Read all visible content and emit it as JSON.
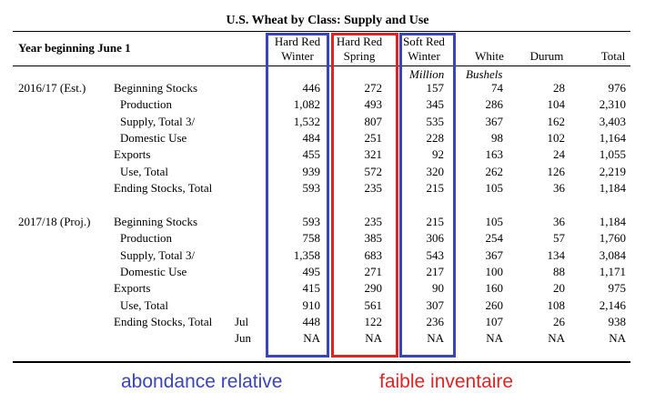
{
  "title": "U.S. Wheat by Class: Supply and Use",
  "year_header": "Year beginning June 1",
  "columns": [
    {
      "line1": "Hard Red",
      "line2": "Winter"
    },
    {
      "line1": "Hard Red",
      "line2": "Spring"
    },
    {
      "line1": "Soft Red",
      "line2": "Winter"
    },
    {
      "line1": "",
      "line2": "White"
    },
    {
      "line1": "",
      "line2": "Durum"
    },
    {
      "line1": "",
      "line2": "Total"
    }
  ],
  "units": {
    "million": "Million",
    "bushels": "Bushels"
  },
  "periods": [
    {
      "label": "2016/17 (Est.)",
      "rows": [
        {
          "label": "Beginning Stocks",
          "sub": "",
          "values": [
            "446",
            "272",
            "157",
            "74",
            "28",
            "976"
          ]
        },
        {
          "label": "Production",
          "sub": "",
          "values": [
            "1,082",
            "493",
            "345",
            "286",
            "104",
            "2,310"
          ]
        },
        {
          "label": "Supply, Total 3/",
          "sub": "",
          "values": [
            "1,532",
            "807",
            "535",
            "367",
            "162",
            "3,403"
          ]
        },
        {
          "label": "Domestic Use",
          "sub": "",
          "values": [
            "484",
            "251",
            "228",
            "98",
            "102",
            "1,164"
          ]
        },
        {
          "label": "Exports",
          "sub": "",
          "values": [
            "455",
            "321",
            "92",
            "163",
            "24",
            "1,055"
          ]
        },
        {
          "label": "Use, Total",
          "sub": "",
          "values": [
            "939",
            "572",
            "320",
            "262",
            "126",
            "2,219"
          ]
        },
        {
          "label": "Ending Stocks, Total",
          "sub": "",
          "values": [
            "593",
            "235",
            "215",
            "105",
            "36",
            "1,184"
          ]
        }
      ]
    },
    {
      "label": "2017/18 (Proj.)",
      "rows": [
        {
          "label": "Beginning Stocks",
          "sub": "",
          "values": [
            "593",
            "235",
            "215",
            "105",
            "36",
            "1,184"
          ]
        },
        {
          "label": "Production",
          "sub": "",
          "values": [
            "758",
            "385",
            "306",
            "254",
            "57",
            "1,760"
          ]
        },
        {
          "label": "Supply, Total 3/",
          "sub": "",
          "values": [
            "1,358",
            "683",
            "543",
            "367",
            "134",
            "3,084"
          ]
        },
        {
          "label": "Domestic Use",
          "sub": "",
          "values": [
            "495",
            "271",
            "217",
            "100",
            "88",
            "1,171"
          ]
        },
        {
          "label": "Exports",
          "sub": "",
          "values": [
            "415",
            "290",
            "90",
            "160",
            "20",
            "975"
          ]
        },
        {
          "label": "Use, Total",
          "sub": "",
          "values": [
            "910",
            "561",
            "307",
            "260",
            "108",
            "2,146"
          ]
        },
        {
          "label": "Ending Stocks, Total",
          "sub": "Jul",
          "values": [
            "448",
            "122",
            "236",
            "107",
            "26",
            "938"
          ]
        },
        {
          "label": "",
          "sub": "Jun",
          "values": [
            "NA",
            "NA",
            "NA",
            "NA",
            "NA",
            "NA"
          ]
        }
      ]
    }
  ],
  "annotations": {
    "blue_caption": "abondance relative",
    "red_caption": "faible inventaire",
    "blue_color": "#3a45b8",
    "red_color": "#e02424"
  }
}
